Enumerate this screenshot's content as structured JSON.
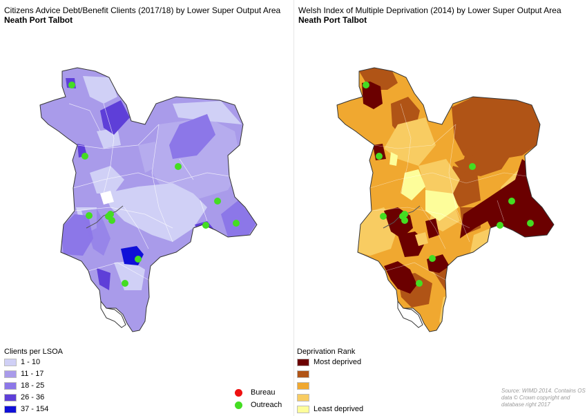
{
  "left_map": {
    "title": "Citizens Advice Debt/Benefit Clients (2017/18) by Lower Super Output Area",
    "subtitle": "Neath Port Talbot",
    "legend_title": "Clients per LSOA",
    "legend": [
      {
        "label": "1 - 10",
        "color": "#d0d0f6"
      },
      {
        "label": "11 - 17",
        "color": "#a99bea"
      },
      {
        "label": "18 - 25",
        "color": "#8c77e8"
      },
      {
        "label": "26 - 36",
        "color": "#5e3fd8"
      },
      {
        "label": "37 - 154",
        "color": "#1010d8"
      }
    ]
  },
  "right_map": {
    "title": "Welsh Index of Multiple Deprivation (2014) by Lower Super Output Area",
    "subtitle": "Neath Port Talbot",
    "legend_title": "Deprivation Rank",
    "legend": [
      {
        "label": "Most deprived",
        "color": "#6b0000"
      },
      {
        "label": "",
        "color": "#b05416"
      },
      {
        "label": "",
        "color": "#f0a830"
      },
      {
        "label": "",
        "color": "#f8cc62"
      },
      {
        "label": "Least deprived",
        "color": "#fdfd9a"
      }
    ]
  },
  "point_legend": [
    {
      "label": "Bureau",
      "color": "#ee1111"
    },
    {
      "label": "Outreach",
      "color": "#44dd22"
    }
  ],
  "source_text": "Source: WIMD 2014. Contains OS data © Crown copyright and database right 2017"
}
